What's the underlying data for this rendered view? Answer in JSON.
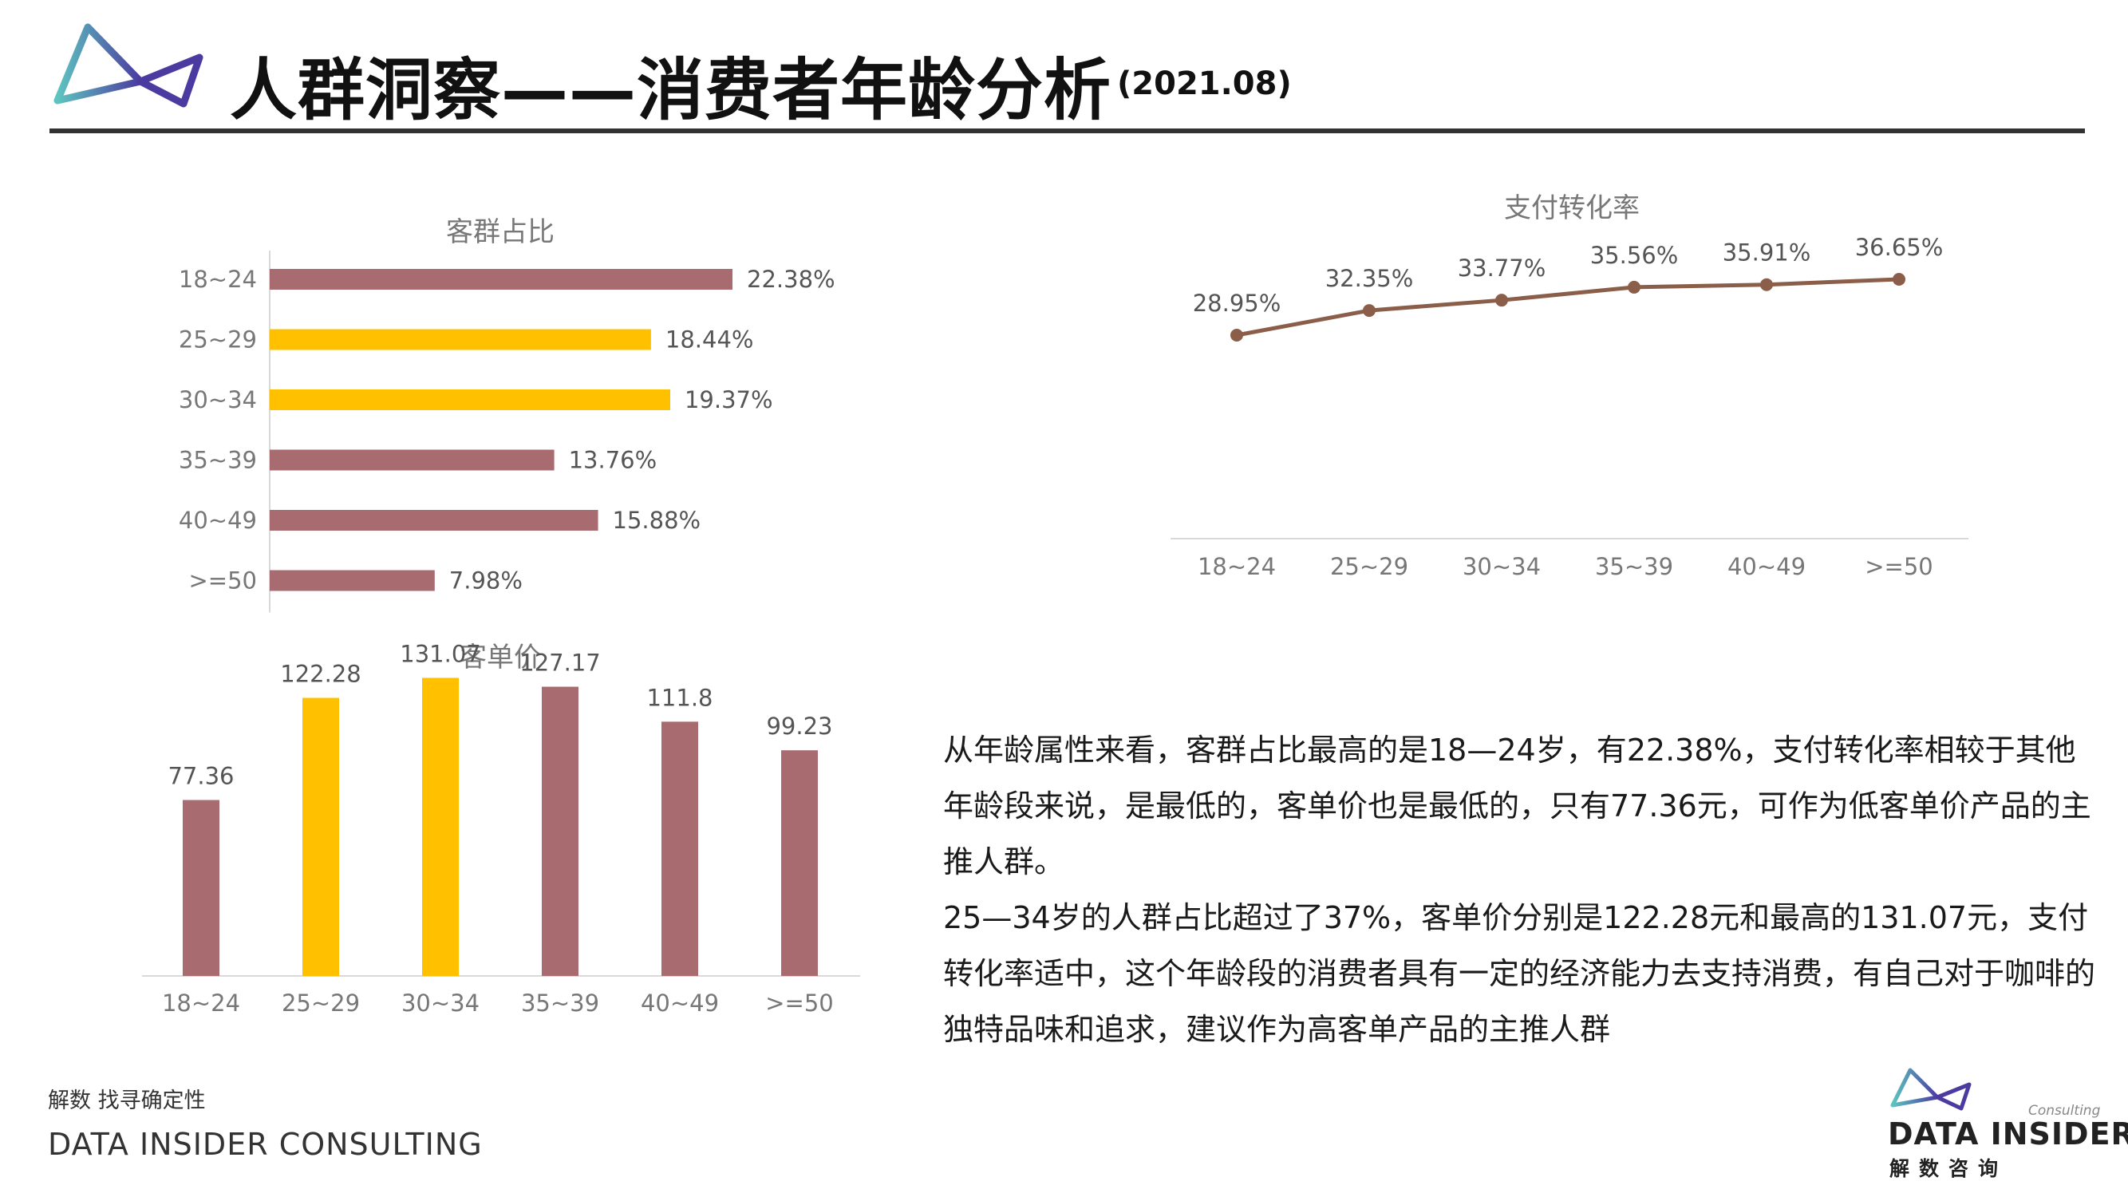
{
  "header": {
    "title": "人群洞察——消费者年龄分析",
    "date": "(2021.08)"
  },
  "colors": {
    "mauve": "#A86B70",
    "gold": "#FFC000",
    "brown": "#8B5E4A",
    "logo_teal": "#5EC4C0",
    "logo_purple": "#4B3BA0"
  },
  "chart_data": [
    {
      "type": "bar",
      "orientation": "horizontal",
      "title": "客群占比",
      "categories": [
        "18~24",
        "25~29",
        "30~34",
        "35~39",
        "40~49",
        ">=50"
      ],
      "values": [
        22.38,
        18.44,
        19.37,
        13.76,
        15.88,
        7.98
      ],
      "labels": [
        "22.38%",
        "18.44%",
        "19.37%",
        "13.76%",
        "15.88%",
        "7.98%"
      ],
      "bar_colors": [
        "#A86B70",
        "#FFC000",
        "#FFC000",
        "#A86B70",
        "#A86B70",
        "#A86B70"
      ],
      "xlim": [
        0,
        25
      ],
      "grid": false
    },
    {
      "type": "bar",
      "orientation": "vertical",
      "title": "客单价",
      "categories": [
        "18~24",
        "25~29",
        "30~34",
        "35~39",
        "40~49",
        ">=50"
      ],
      "values": [
        77.36,
        122.28,
        131.07,
        127.17,
        111.8,
        99.23
      ],
      "labels": [
        "77.36",
        "122.28",
        "131.07",
        "127.17",
        "111.8",
        "99.23"
      ],
      "bar_colors": [
        "#A86B70",
        "#FFC000",
        "#FFC000",
        "#A86B70",
        "#A86B70",
        "#A86B70"
      ],
      "ylim": [
        0,
        150
      ],
      "grid": false
    },
    {
      "type": "line",
      "title": "支付转化率",
      "categories": [
        "18~24",
        "25~29",
        "30~34",
        "35~39",
        "40~49",
        ">=50"
      ],
      "values": [
        28.95,
        32.35,
        33.77,
        35.56,
        35.91,
        36.65
      ],
      "labels": [
        "28.95%",
        "32.35%",
        "33.77%",
        "35.56%",
        "35.91%",
        "36.65%"
      ],
      "line_color": "#8B5E4A",
      "ylim": [
        0,
        40
      ],
      "grid": false
    }
  ],
  "analysis": {
    "paragraph1": "从年龄属性来看，客群占比最高的是18—24岁，有22.38%，支付转化率相较于其他年龄段来说，是最低的，客单价也是最低的，只有77.36元，可作为低客单价产品的主推人群。",
    "paragraph2": "25—34岁的人群占比超过了37%，客单价分别是122.28元和最高的131.07元，支付转化率适中，这个年龄段的消费者具有一定的经济能力去支持消费，有自己对于咖啡的独特品味和追求，建议作为高客单产品的主推人群"
  },
  "footer": {
    "slogan": "解数 找寻确定性",
    "company": "DATA INSIDER CONSULTING"
  },
  "brand": {
    "consulting": "Consulting",
    "name": "DATA INSIDER",
    "cn_name": "解数咨询"
  }
}
